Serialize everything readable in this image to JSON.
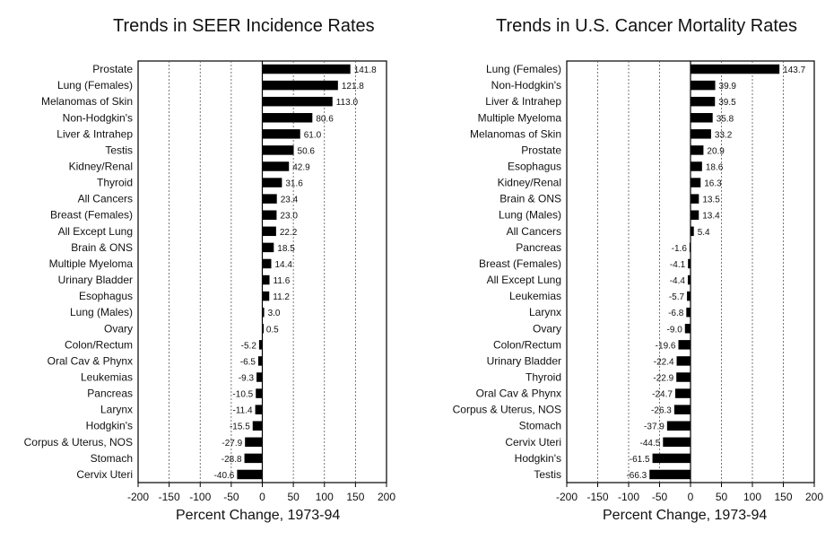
{
  "chart_data": [
    {
      "type": "bar",
      "orientation": "horizontal",
      "title": "Trends in SEER Incidence Rates",
      "xlabel": "Percent Change, 1973-94",
      "xlim": [
        -200,
        200
      ],
      "xticks": [
        -200,
        -150,
        -100,
        -50,
        0,
        50,
        100,
        150,
        200
      ],
      "grid": true,
      "categories": [
        "Prostate",
        "Lung (Females)",
        "Melanomas of Skin",
        "Non-Hodgkin's",
        "Liver & Intrahep",
        "Testis",
        "Kidney/Renal",
        "Thyroid",
        "All Cancers",
        "Breast (Females)",
        "All Except Lung",
        "Brain & ONS",
        "Multiple Myeloma",
        "Urinary Bladder",
        "Esophagus",
        "Lung (Males)",
        "Ovary",
        "Colon/Rectum",
        "Oral Cav & Phynx",
        "Leukemias",
        "Pancreas",
        "Larynx",
        "Hodgkin's",
        "Corpus & Uterus, NOS",
        "Stomach",
        "Cervix Uteri"
      ],
      "values": [
        141.8,
        121.8,
        113.0,
        80.6,
        61.0,
        50.6,
        42.9,
        31.6,
        23.4,
        23.0,
        22.2,
        18.5,
        14.4,
        11.6,
        11.2,
        3.0,
        0.5,
        -5.2,
        -6.5,
        -9.3,
        -10.5,
        -11.4,
        -15.5,
        -27.9,
        -28.8,
        -40.6
      ],
      "labels": [
        "141.8",
        "121.8",
        "113.0",
        "80.6",
        "61.0",
        "50.6",
        "42.9",
        "31.6",
        "23.4",
        "23.0",
        "22.2",
        "18.5",
        "14.4",
        "11.6",
        "11.2",
        "3.0",
        "0.5",
        "-5.2",
        "-6.5",
        "-9.3",
        "-10.5",
        "-11.4",
        "-15.5",
        "-27.9",
        "-28.8",
        "-40.6"
      ]
    },
    {
      "type": "bar",
      "orientation": "horizontal",
      "title": "Trends in U.S. Cancer Mortality Rates",
      "xlabel": "Percent Change, 1973-94",
      "xlim": [
        -200,
        200
      ],
      "xticks": [
        -200,
        -150,
        -100,
        -50,
        0,
        50,
        100,
        150,
        200
      ],
      "grid": true,
      "categories": [
        "Lung (Females)",
        "Non-Hodgkin's",
        "Liver & Intrahep",
        "Multiple Myeloma",
        "Melanomas of Skin",
        "Prostate",
        "Esophagus",
        "Kidney/Renal",
        "Brain & ONS",
        "Lung (Males)",
        "All Cancers",
        "Pancreas",
        "Breast (Females)",
        "All Except Lung",
        "Leukemias",
        "Larynx",
        "Ovary",
        "Colon/Rectum",
        "Urinary Bladder",
        "Thyroid",
        "Oral Cav & Phynx",
        "Corpus & Uterus, NOS",
        "Stomach",
        "Cervix Uteri",
        "Hodgkin's",
        "Testis"
      ],
      "values": [
        143.7,
        39.9,
        39.5,
        35.8,
        33.2,
        20.9,
        18.6,
        16.3,
        13.5,
        13.4,
        5.4,
        -1.6,
        -4.1,
        -4.4,
        -5.7,
        -6.8,
        -9.0,
        -19.6,
        -22.4,
        -22.9,
        -24.7,
        -26.3,
        -37.9,
        -44.5,
        -61.5,
        -66.3
      ],
      "labels": [
        "143.7",
        "39.9",
        "39.5",
        "35.8",
        "33.2",
        "20.9",
        "18.6",
        "16.3",
        "13.5",
        "13.4",
        "5.4",
        "-1.6",
        "-4.1",
        "-4.4",
        "-5.7",
        "-6.8",
        "-9.0",
        "-19.6",
        "-22.4",
        "-22.9",
        "-24.7",
        "-26.3",
        "-37.9",
        "-44.5",
        "-61.5",
        "-66.3"
      ]
    }
  ]
}
